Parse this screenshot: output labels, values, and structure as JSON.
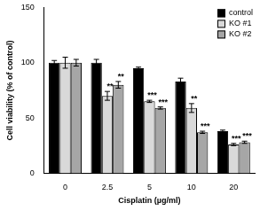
{
  "chart_data": {
    "type": "bar",
    "x_label": "Cisplatin (µg/ml)",
    "y_label": "Cell viability (% of control)",
    "categories": [
      "0",
      "2.5",
      "5",
      "10",
      "20"
    ],
    "series": [
      {
        "name": "control",
        "color": "#000000",
        "values": [
          100,
          100,
          95,
          83,
          38
        ],
        "errors": [
          2,
          3,
          1,
          3,
          1
        ],
        "annotations": [
          null,
          null,
          null,
          null,
          null
        ]
      },
      {
        "name": "KO #1",
        "color": "#d9d9d9",
        "values": [
          100,
          70,
          65,
          59,
          26
        ],
        "errors": [
          5,
          4,
          1,
          4,
          1
        ],
        "annotations": [
          null,
          "**",
          "***",
          "**",
          "***"
        ]
      },
      {
        "name": "KO #2",
        "color": "#a6a6a6",
        "values": [
          100,
          80,
          59,
          37,
          28
        ],
        "errors": [
          3,
          3,
          1,
          1,
          1
        ],
        "annotations": [
          null,
          "**",
          "***",
          "***",
          "***"
        ]
      }
    ],
    "ylim": [
      0,
      150
    ],
    "yticks": [
      0,
      50,
      100,
      150
    ],
    "grid": false,
    "legend": "upper-right"
  }
}
